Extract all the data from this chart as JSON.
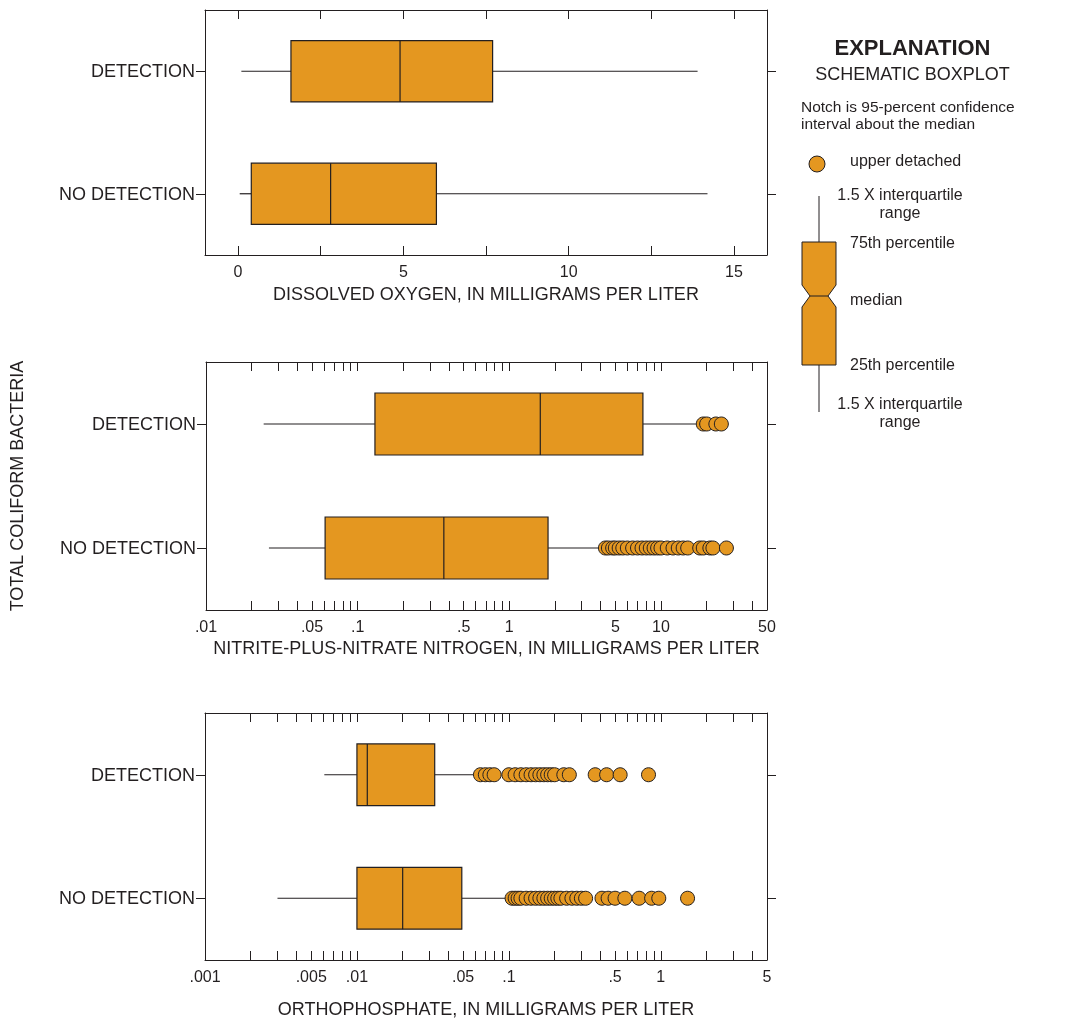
{
  "chart_data": [
    {
      "type": "box",
      "orientation": "horizontal",
      "xlabel": "DISSOLVED OXYGEN, IN MILLIGRAMS PER LITER",
      "categories": [
        "DETECTION",
        "NO DETECTION"
      ],
      "xlim": [
        -1,
        16
      ],
      "xticks": [
        0,
        {
          "value": 2.5,
          "label": null
        },
        5,
        {
          "value": 7.5,
          "label": null
        },
        10,
        {
          "value": 12.5,
          "label": null
        },
        15
      ],
      "series": [
        {
          "color": "#e49720",
          "boxes": [
            {
              "low": 0.1,
              "q1": 1.6,
              "median": 4.9,
              "q3": 7.7,
              "high": 13.9
            },
            {
              "low": 0.05,
              "q1": 0.4,
              "median": 2.8,
              "q3": 6.0,
              "high": 14.2
            }
          ]
        }
      ]
    },
    {
      "type": "box",
      "orientation": "horizontal",
      "log": "x",
      "xlabel": "NITRITE-PLUS-NITRATE NITROGEN, IN MILLIGRAMS PER LITER",
      "ylabel": "TOTAL COLIFORM BACTERIA",
      "categories": [
        "DETECTION",
        "NO DETECTION"
      ],
      "xlim": [
        0.01,
        50
      ],
      "xticks": [
        {
          "value": 0.01,
          "label": ".01"
        },
        {
          "value": 0.02,
          "label": null
        },
        {
          "value": 0.03,
          "label": null
        },
        {
          "value": 0.04,
          "label": null
        },
        {
          "value": 0.05,
          "label": ".05"
        },
        {
          "value": 0.06,
          "label": null
        },
        {
          "value": 0.07,
          "label": null
        },
        {
          "value": 0.08,
          "label": null
        },
        {
          "value": 0.09,
          "label": null
        },
        {
          "value": 0.1,
          "label": ".1"
        },
        {
          "value": 0.2,
          "label": null
        },
        {
          "value": 0.3,
          "label": null
        },
        {
          "value": 0.4,
          "label": null
        },
        {
          "value": 0.5,
          "label": ".5"
        },
        {
          "value": 0.6,
          "label": null
        },
        {
          "value": 0.7,
          "label": null
        },
        {
          "value": 0.8,
          "label": null
        },
        {
          "value": 0.9,
          "label": null
        },
        1,
        {
          "value": 2,
          "label": null
        },
        {
          "value": 3,
          "label": null
        },
        {
          "value": 4,
          "label": null
        },
        5,
        {
          "value": 6,
          "label": null
        },
        {
          "value": 7,
          "label": null
        },
        {
          "value": 8,
          "label": null
        },
        {
          "value": 9,
          "label": null
        },
        10,
        {
          "value": 20,
          "label": null
        },
        {
          "value": 30,
          "label": null
        },
        {
          "value": 40,
          "label": null
        },
        50
      ],
      "series": [
        {
          "color": "#e49720",
          "boxes": [
            {
              "low": 0.024,
              "q1": 0.13,
              "median": 1.6,
              "q3": 7.6,
              "high": 17,
              "outliers": [
                19,
                20,
                23,
                25
              ]
            },
            {
              "low": 0.026,
              "q1": 0.061,
              "median": 0.37,
              "q3": 1.8,
              "high": 4.1,
              "outliers": [
                4.3,
                4.5,
                4.8,
                5,
                5.3,
                5.6,
                6,
                6.5,
                7,
                7.5,
                8,
                8.5,
                9,
                9.5,
                10,
                11,
                12,
                13,
                14,
                15,
                18,
                19,
                21,
                22,
                27
              ]
            }
          ]
        }
      ]
    },
    {
      "type": "box",
      "orientation": "horizontal",
      "log": "x",
      "xlabel": "ORTHOPHOSPHATE, IN MILLIGRAMS PER LITER",
      "categories": [
        "DETECTION",
        "NO DETECTION"
      ],
      "xlim": [
        0.001,
        5
      ],
      "xticks": [
        {
          "value": 0.001,
          "label": ".001"
        },
        {
          "value": 0.002,
          "label": null
        },
        {
          "value": 0.003,
          "label": null
        },
        {
          "value": 0.004,
          "label": null
        },
        {
          "value": 0.005,
          "label": ".005"
        },
        {
          "value": 0.006,
          "label": null
        },
        {
          "value": 0.007,
          "label": null
        },
        {
          "value": 0.008,
          "label": null
        },
        {
          "value": 0.009,
          "label": null
        },
        {
          "value": 0.01,
          "label": ".01"
        },
        {
          "value": 0.02,
          "label": null
        },
        {
          "value": 0.03,
          "label": null
        },
        {
          "value": 0.04,
          "label": null
        },
        {
          "value": 0.05,
          "label": ".05"
        },
        {
          "value": 0.06,
          "label": null
        },
        {
          "value": 0.07,
          "label": null
        },
        {
          "value": 0.08,
          "label": null
        },
        {
          "value": 0.09,
          "label": null
        },
        {
          "value": 0.1,
          "label": ".1"
        },
        {
          "value": 0.2,
          "label": null
        },
        {
          "value": 0.3,
          "label": null
        },
        {
          "value": 0.4,
          "label": null
        },
        {
          "value": 0.5,
          "label": ".5"
        },
        {
          "value": 0.6,
          "label": null
        },
        {
          "value": 0.7,
          "label": null
        },
        {
          "value": 0.8,
          "label": null
        },
        {
          "value": 0.9,
          "label": null
        },
        1,
        {
          "value": 2,
          "label": null
        },
        {
          "value": 3,
          "label": null
        },
        {
          "value": 4,
          "label": null
        },
        5
      ],
      "series": [
        {
          "color": "#e49720",
          "boxes": [
            {
              "low": 0.0061,
              "q1": 0.01,
              "median": 0.0117,
              "q3": 0.0325,
              "high": 0.062,
              "outliers": [
                0.065,
                0.07,
                0.075,
                0.08,
                0.1,
                0.11,
                0.12,
                0.13,
                0.14,
                0.15,
                0.16,
                0.17,
                0.18,
                0.19,
                0.2,
                0.23,
                0.25,
                0.37,
                0.44,
                0.54,
                0.83
              ]
            },
            {
              "low": 0.003,
              "q1": 0.01,
              "median": 0.02,
              "q3": 0.049,
              "high": 0.1,
              "outliers": [
                0.105,
                0.11,
                0.115,
                0.12,
                0.13,
                0.14,
                0.15,
                0.16,
                0.17,
                0.18,
                0.19,
                0.2,
                0.21,
                0.22,
                0.24,
                0.26,
                0.28,
                0.3,
                0.32,
                0.41,
                0.45,
                0.5,
                0.58,
                0.72,
                0.87,
                0.97,
                1.5
              ]
            }
          ]
        }
      ]
    },
    {
      "type": "other",
      "title": "EXPLANATION",
      "subtitle": "SCHEMATIC BOXPLOT",
      "annotations": [
        "Notch is 95-percent confidence interval about the median",
        "upper detached",
        "1.5 X interquartile range",
        "75th percentile",
        "median",
        "25th percentile",
        "1.5 X interquartile range"
      ]
    }
  ]
}
